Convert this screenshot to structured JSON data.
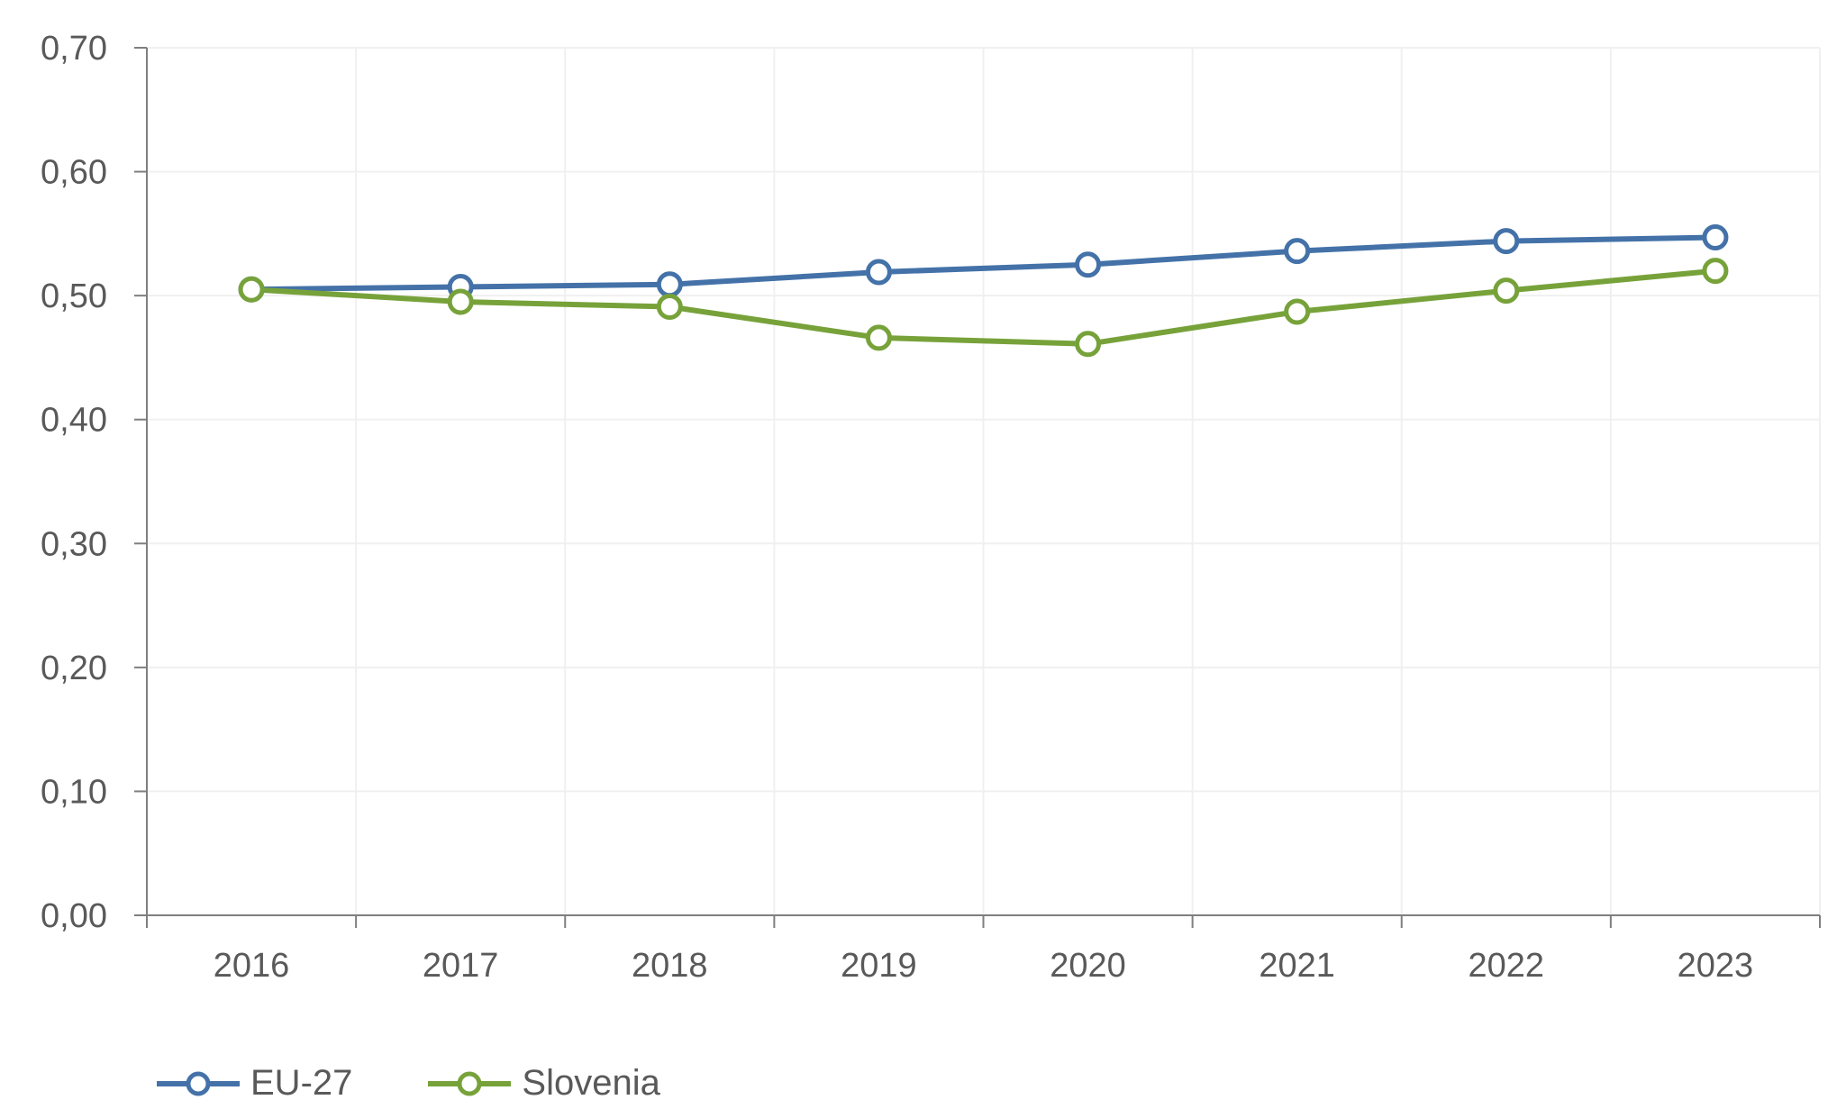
{
  "chart_data": {
    "type": "line",
    "categories": [
      "2016",
      "2017",
      "2018",
      "2019",
      "2020",
      "2021",
      "2022",
      "2023"
    ],
    "series": [
      {
        "name": "EU-27",
        "color": "#4472a8",
        "values": [
          0.505,
          0.507,
          0.509,
          0.519,
          0.525,
          0.536,
          0.544,
          0.547
        ]
      },
      {
        "name": "Slovenia",
        "color": "#77a23a",
        "values": [
          0.505,
          0.495,
          0.491,
          0.466,
          0.461,
          0.487,
          0.504,
          0.52
        ]
      }
    ],
    "ylim": [
      0,
      0.7
    ],
    "yticks": [
      "0,00",
      "0,10",
      "0,20",
      "0,30",
      "0,40",
      "0,50",
      "0,60",
      "0,70"
    ],
    "grid": true,
    "legend_position": "bottom-left",
    "title": "",
    "xlabel": "",
    "ylabel": ""
  }
}
